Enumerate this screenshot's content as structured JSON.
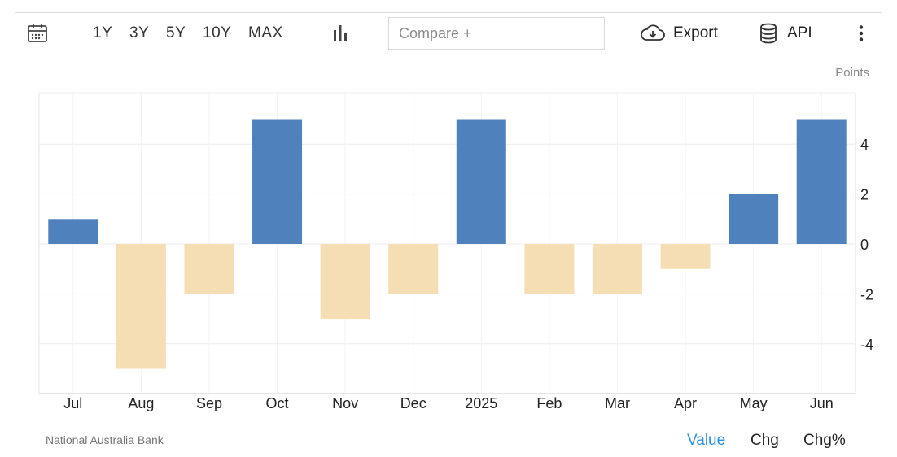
{
  "toolbar": {
    "ranges": [
      "1Y",
      "3Y",
      "5Y",
      "10Y",
      "MAX"
    ],
    "compare_placeholder": "Compare +",
    "export_label": "Export",
    "api_label": "API"
  },
  "units_label": "Points",
  "source_label": "National Australia Bank",
  "modes": [
    "Value",
    "Chg",
    "Chg%"
  ],
  "active_mode": "Value",
  "colors": {
    "positive": "#4f81bd",
    "negative": "#f5deb3",
    "active_mode": "#2d8fe0"
  },
  "chart_data": {
    "type": "bar",
    "categories": [
      "Jul",
      "Aug",
      "Sep",
      "Oct",
      "Nov",
      "Dec",
      "2025",
      "Feb",
      "Mar",
      "Apr",
      "May",
      "Jun"
    ],
    "values": [
      1,
      -5,
      -2,
      5,
      -3,
      -2,
      5,
      -2,
      -2,
      -1,
      2,
      5
    ],
    "title": "",
    "xlabel": "",
    "ylabel": "Points",
    "ylim": [
      -6,
      6
    ],
    "yticks": [
      4,
      2,
      0,
      -2,
      -4
    ],
    "grid": true,
    "y_axis_position": "right"
  }
}
